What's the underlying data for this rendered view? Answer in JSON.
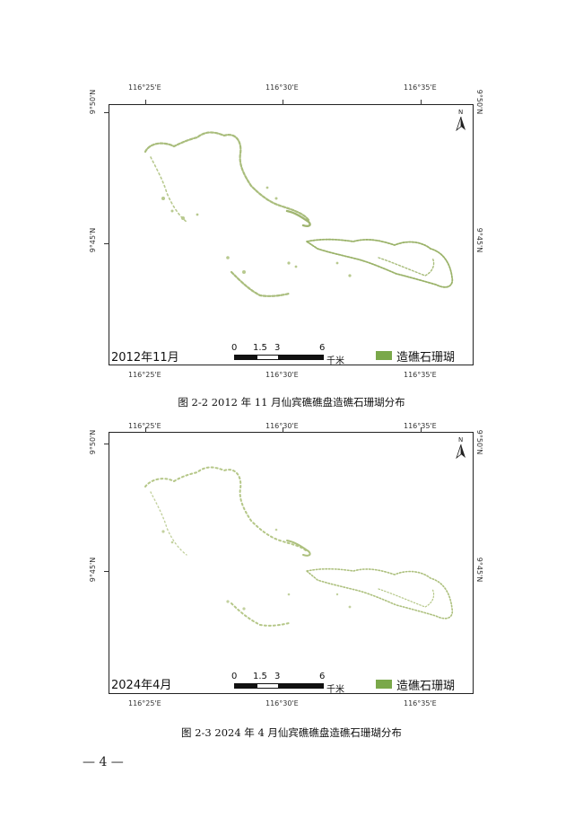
{
  "maps": [
    {
      "date_label": "2012年11月",
      "caption": "图 2-2 2012 年 11 月仙宾礁礁盘造礁石珊瑚分布"
    },
    {
      "date_label": "2024年4月",
      "caption": "图 2-3 2024 年 4 月仙宾礁礁盘造礁石珊瑚分布"
    }
  ],
  "coords": {
    "lon": [
      "116°25'E",
      "116°30'E",
      "116°35'E"
    ],
    "lat": [
      "9°50'N",
      "9°45'N"
    ]
  },
  "north_arrow": {
    "label": "N",
    "icon": "north-arrow-icon"
  },
  "scale": {
    "ticks": [
      "0",
      "1.5",
      "3",
      "6"
    ],
    "unit": "千米"
  },
  "legend": {
    "label": "造礁石珊瑚",
    "color": "#7aa84a"
  },
  "reef_color": "#9bb36a",
  "page_number": "— 4 —"
}
